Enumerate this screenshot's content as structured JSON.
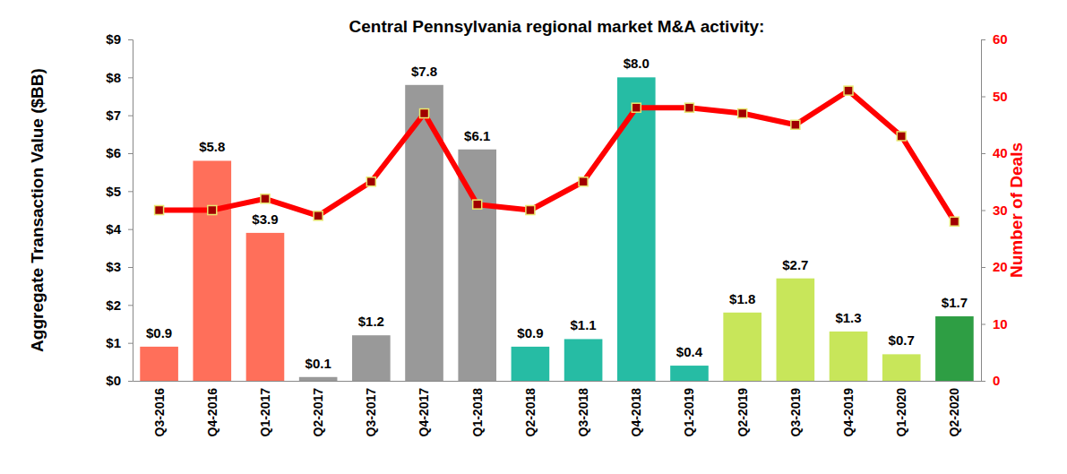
{
  "chart_data": {
    "type": "bar",
    "title": "Central Pennsylvania regional market M&A activity:",
    "y_label": "Aggregate Transaction Value ($BB)",
    "y2_label": "Number of Deals",
    "categories": [
      "Q3-2016",
      "Q4-2016",
      "Q1-2017",
      "Q2-2017",
      "Q3-2017",
      "Q4-2017",
      "Q1-2018",
      "Q2-2018",
      "Q3-2018",
      "Q4-2018",
      "Q1-2019",
      "Q2-2019",
      "Q3-2019",
      "Q4-2019",
      "Q1-2020",
      "Q2-2020"
    ],
    "series": [
      {
        "type": "bar",
        "values": [
          0.9,
          5.8,
          3.9,
          0.1,
          1.2,
          7.8,
          6.1,
          0.9,
          1.1,
          8.0,
          0.4,
          1.8,
          2.7,
          1.3,
          0.7,
          1.7
        ],
        "value_labels": [
          "$0.9",
          "$5.8",
          "$3.9",
          "$0.1",
          "$1.2",
          "$7.8",
          "$6.1",
          "$0.9",
          "$1.1",
          "$8.0",
          "$0.4",
          "$1.8",
          "$2.7",
          "$1.3",
          "$0.7",
          "$1.7"
        ],
        "colors": [
          "#ff6f5a",
          "#ff6f5a",
          "#ff6f5a",
          "#999999",
          "#999999",
          "#999999",
          "#999999",
          "#26bca4",
          "#26bca4",
          "#26bca4",
          "#26bca4",
          "#c8e65a",
          "#c8e65a",
          "#c8e65a",
          "#c8e65a",
          "#2e9e44"
        ],
        "data_labels": true
      },
      {
        "type": "line",
        "axis": "y2",
        "color": "#ff0000",
        "marker": "square",
        "values": [
          30,
          30,
          32,
          29,
          35,
          47,
          31,
          30,
          35,
          48,
          48,
          47,
          45,
          51,
          43,
          28
        ]
      }
    ],
    "ylim": [
      0,
      9
    ],
    "yticks": [
      {
        "value": 0,
        "label": "$0"
      },
      {
        "value": 1,
        "label": "$1"
      },
      {
        "value": 2,
        "label": "$2"
      },
      {
        "value": 3,
        "label": "$3"
      },
      {
        "value": 4,
        "label": "$4"
      },
      {
        "value": 5,
        "label": "$5"
      },
      {
        "value": 6,
        "label": "$6"
      },
      {
        "value": 7,
        "label": "$7"
      },
      {
        "value": 8,
        "label": "$8"
      },
      {
        "value": 9,
        "label": "$9"
      }
    ],
    "y2lim": [
      0,
      60
    ],
    "y2ticks": [
      0,
      10,
      20,
      30,
      40,
      50,
      60
    ],
    "grid": false
  }
}
